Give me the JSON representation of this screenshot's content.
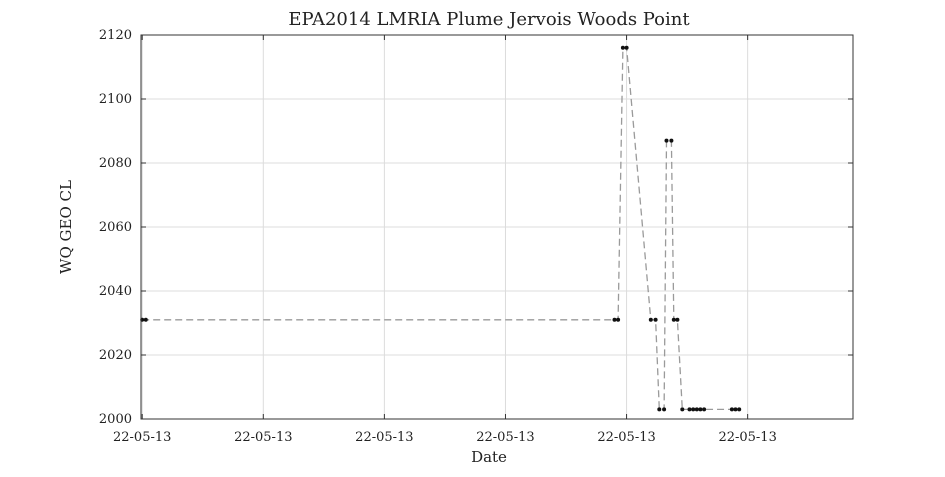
{
  "chart_data": {
    "type": "line",
    "title": "EPA2014 LMRIA Plume Jervois Woods Point",
    "xlabel": "Date",
    "ylabel": "WQ GEO CL",
    "ylim": [
      2000,
      2120
    ],
    "yticks": [
      2000,
      2020,
      2040,
      2060,
      2080,
      2100,
      2120
    ],
    "xlim": [
      -0.01,
      5.87
    ],
    "xticks": [
      0,
      1,
      2,
      3,
      4,
      5
    ],
    "xtick_labels": [
      "22-05-13",
      "22-05-13",
      "22-05-13",
      "22-05-13",
      "22-05-13",
      "22-05-13"
    ],
    "grid": true,
    "colors": {
      "line": "#9a9a9a",
      "marker": "#111111",
      "grid": "#dcdcdc",
      "axis": "#333333"
    },
    "series": [
      {
        "x": [
          0.0,
          0.03,
          3.9,
          3.93,
          3.97,
          4.0,
          4.2,
          4.24,
          4.27,
          4.31,
          4.33,
          4.37,
          4.39,
          4.42,
          4.46,
          4.52,
          4.55,
          4.58,
          4.61,
          4.64,
          4.87,
          4.9,
          4.93
        ],
        "y": [
          2031,
          2031,
          2031,
          2031,
          2116,
          2116,
          2031,
          2031,
          2003,
          2003,
          2087,
          2087,
          2031,
          2031,
          2003,
          2003,
          2003,
          2003,
          2003,
          2003,
          2003,
          2003,
          2003
        ]
      }
    ]
  }
}
